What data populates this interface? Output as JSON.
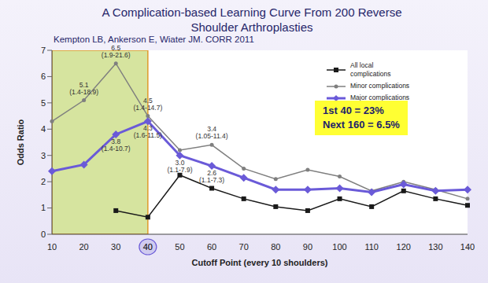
{
  "chart_data": {
    "type": "line",
    "title": "A Complication-based Learning Curve From 200 Reverse Shoulder Arthroplasties",
    "subtitle": "Kempton LB, Ankerson E, Wiater JM. CORR 2011",
    "x_label": "Cutoff Point (every 10 shoulders)",
    "y_label": "Odds Ratio",
    "categories": [
      10,
      20,
      30,
      40,
      50,
      60,
      70,
      80,
      90,
      100,
      110,
      120,
      130,
      140
    ],
    "ylim": [
      0,
      7
    ],
    "yticks": [
      0,
      1,
      2,
      3,
      4,
      5,
      6,
      7
    ],
    "grid": false,
    "legend": "upper right",
    "shaded_range": [
      10,
      40
    ],
    "annotation": [
      "1st 40 = 23%",
      "Next 160 = 6.5%"
    ],
    "series": [
      {
        "name": "All local complications",
        "color": "#1a1a1a",
        "marker": "square",
        "values": [
          null,
          null,
          0.9,
          0.65,
          2.25,
          1.75,
          1.35,
          1.05,
          0.9,
          1.35,
          1.05,
          1.65,
          1.35,
          1.1
        ],
        "value_labels": [
          null,
          null,
          null,
          null,
          null,
          null,
          null,
          null,
          null,
          null,
          null,
          null,
          null,
          null
        ]
      },
      {
        "name": "Minor complications",
        "color": "#7f7f7f",
        "marker": "circle",
        "values": [
          4.3,
          5.1,
          6.5,
          4.5,
          3.2,
          3.4,
          2.5,
          2.1,
          2.45,
          2.2,
          1.65,
          2.0,
          1.7,
          1.35
        ],
        "value_labels": [
          null,
          "5.1 (1.4-18.9)",
          "6.5 (1.9-21.6)",
          "4.5 (1.4-14.7)",
          null,
          "3.4 (1.05-11.4)",
          null,
          null,
          null,
          null,
          null,
          null,
          null,
          null
        ]
      },
      {
        "name": "Major complications",
        "color": "#6a5ad8",
        "marker": "diamond",
        "values": [
          2.4,
          2.65,
          3.8,
          4.3,
          3.0,
          2.6,
          2.15,
          1.7,
          1.7,
          1.75,
          1.6,
          1.9,
          1.65,
          1.7
        ],
        "value_labels": [
          null,
          null,
          "3.8 (1.4-10.7)",
          "4.3 (1.6-11.5)",
          "3.0 (1.1-7.9)",
          "2.6 (1.1-7.3)",
          null,
          null,
          null,
          null,
          null,
          null,
          null,
          null
        ]
      }
    ]
  }
}
